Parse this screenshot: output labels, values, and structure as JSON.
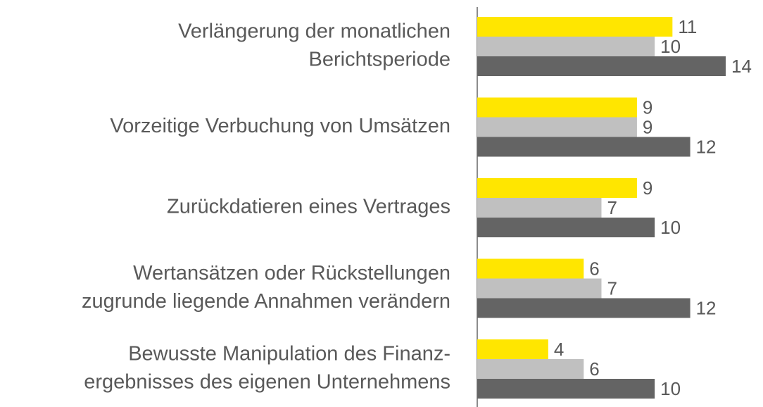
{
  "chart_data": {
    "type": "hbar",
    "categories": [
      [
        "Verlängerung der monatlichen",
        "Berichtsperiode"
      ],
      [
        "Vorzeitige Verbuchung von Umsätzen"
      ],
      [
        "Zurückdatieren eines Vertrages"
      ],
      [
        "Wertansätzen oder Rückstellungen",
        "zugrunde liegende Annahmen verändern"
      ],
      [
        "Bewusste Manipulation des Finanz-",
        "ergebnisses des eigenen Unternehmens"
      ]
    ],
    "series": [
      {
        "color": "#ffe600",
        "values": [
          11,
          9,
          9,
          6,
          4
        ]
      },
      {
        "color": "#c0c0c0",
        "values": [
          10,
          9,
          7,
          7,
          6
        ]
      },
      {
        "color": "#646464",
        "values": [
          14,
          12,
          10,
          12,
          10
        ]
      }
    ]
  }
}
